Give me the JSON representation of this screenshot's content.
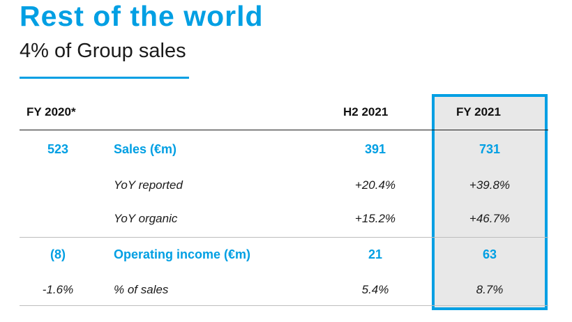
{
  "title": "Rest of the world",
  "subtitle": "4% of Group sales",
  "table": {
    "headers": {
      "fy2020": "FY 2020*",
      "h2_2021": "H2 2021",
      "fy2021": "FY 2021"
    },
    "rows": [
      {
        "fy2020": "523",
        "label": "Sales (€m)",
        "h2_2021": "391",
        "fy2021": "731",
        "style": "bold-blue"
      },
      {
        "fy2020": "",
        "label": "YoY reported",
        "h2_2021": "+20.4%",
        "fy2021": "+39.8%",
        "style": "italic"
      },
      {
        "fy2020": "",
        "label": "YoY organic",
        "h2_2021": "+15.2%",
        "fy2021": "+46.7%",
        "style": "italic"
      },
      {
        "fy2020": "(8)",
        "label": "Operating income (€m)",
        "h2_2021": "21",
        "fy2021": "63",
        "style": "bold-blue"
      },
      {
        "fy2020": "-1.6%",
        "label": "% of sales",
        "h2_2021": "5.4%",
        "fy2021": "8.7%",
        "style": "italic"
      }
    ]
  },
  "colors": {
    "accent": "#009fe3",
    "highlight_bg": "#e8e8e8",
    "text": "#1a1a1a"
  }
}
